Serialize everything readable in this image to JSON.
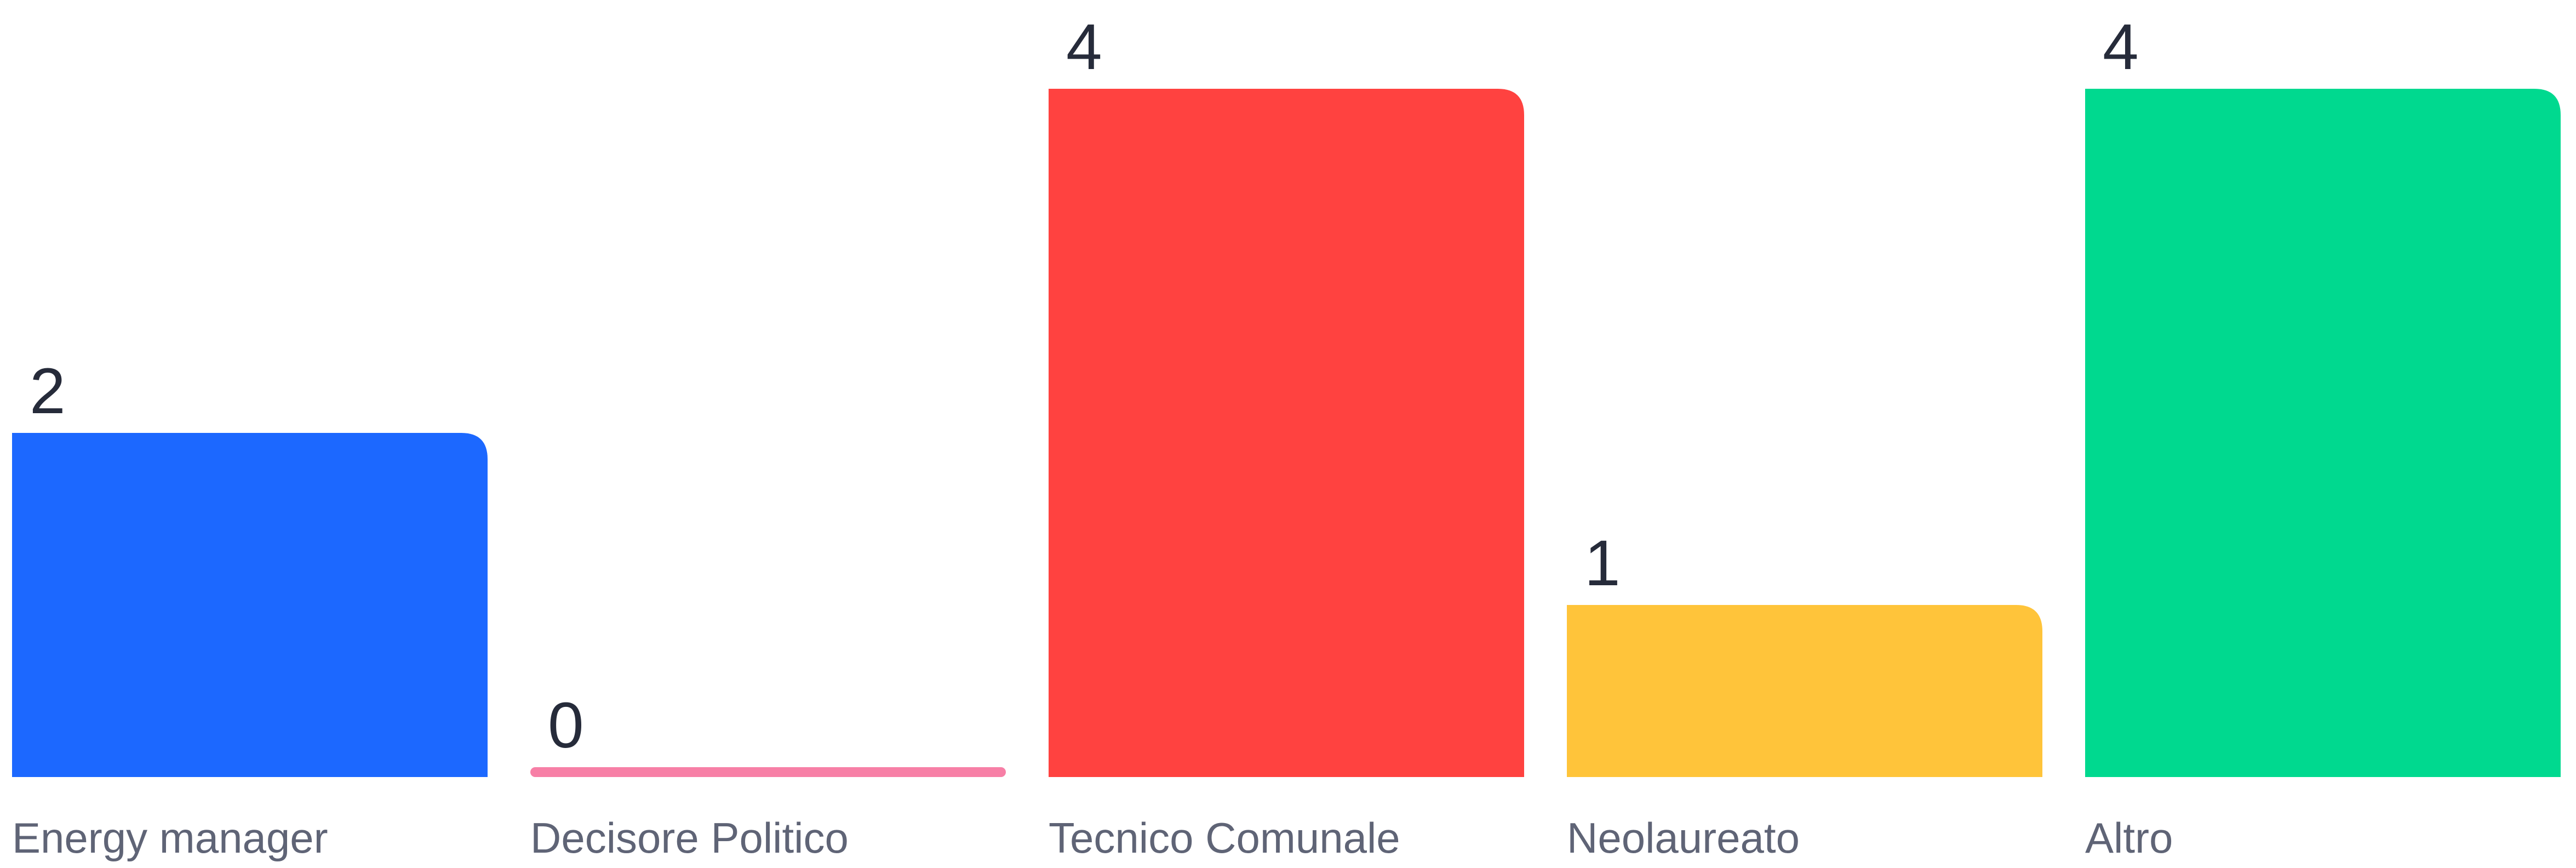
{
  "chart_data": {
    "type": "bar",
    "categories": [
      "Energy manager",
      "Decisore Politico",
      "Tecnico Comunale",
      "Neolaureato",
      "Altro"
    ],
    "values": [
      2,
      0,
      4,
      1,
      4
    ],
    "value_labels": [
      "2",
      "0",
      "4",
      "1",
      "4"
    ],
    "colors": [
      "#1c68ff",
      "#f77fa6",
      "#ff4240",
      "#ffc43a",
      "#00d98f"
    ],
    "title": "",
    "xlabel": "",
    "ylabel": "",
    "ylim": [
      0,
      4
    ],
    "grid": false,
    "legend": "none"
  }
}
